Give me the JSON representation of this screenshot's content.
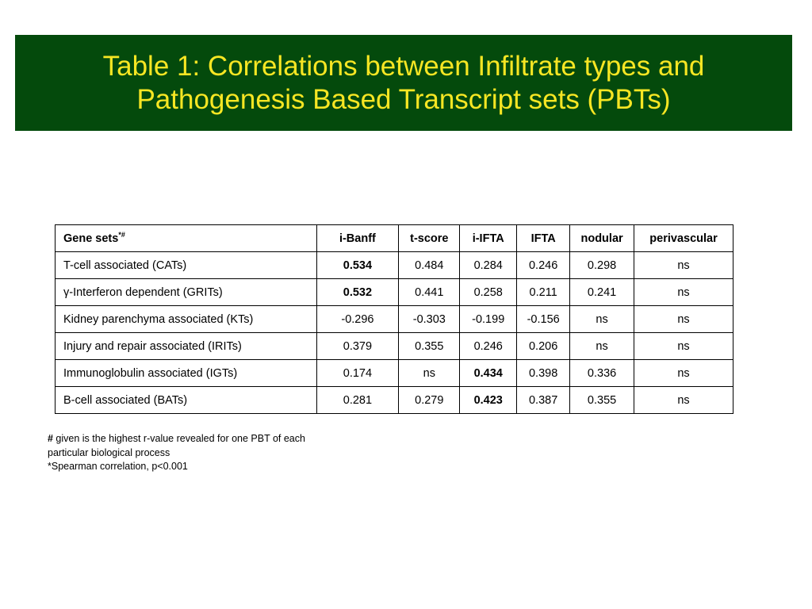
{
  "title": {
    "line1": "Table 1: Correlations between Infiltrate types and",
    "line2": "Pathogenesis Based Transcript sets (PBTs)"
  },
  "table": {
    "header": {
      "gene_sets_label": "Gene sets",
      "gene_sets_marks": "*#",
      "columns": [
        "i-Banff",
        "t-score",
        "i-IFTA",
        "IFTA",
        "nodular",
        "perivascular"
      ]
    },
    "rows": [
      {
        "name": "T-cell associated (CATs)",
        "values": [
          "0.534",
          "0.484",
          "0.284",
          "0.246",
          "0.298",
          "ns"
        ],
        "bold": [
          true,
          false,
          false,
          false,
          false,
          false
        ]
      },
      {
        "name": "γ-Interferon dependent (GRITs)",
        "values": [
          "0.532",
          "0.441",
          "0.258",
          "0.211",
          "0.241",
          "ns"
        ],
        "bold": [
          true,
          false,
          false,
          false,
          false,
          false
        ]
      },
      {
        "name": "Kidney  parenchyma associated (KTs)",
        "values": [
          "-0.296",
          "-0.303",
          "-0.199",
          "-0.156",
          "ns",
          "ns"
        ],
        "bold": [
          false,
          false,
          false,
          false,
          false,
          false
        ]
      },
      {
        "name": "Injury and repair associated (IRITs)",
        "values": [
          "0.379",
          "0.355",
          "0.246",
          "0.206",
          "ns",
          "ns"
        ],
        "bold": [
          false,
          false,
          false,
          false,
          false,
          false
        ]
      },
      {
        "name": "Immunoglobulin associated (IGTs)",
        "values": [
          "0.174",
          "ns",
          "0.434",
          "0.398",
          "0.336",
          "ns"
        ],
        "bold": [
          false,
          false,
          true,
          false,
          false,
          false
        ]
      },
      {
        "name": "B-cell associated (BATs)",
        "values": [
          "0.281",
          "0.279",
          "0.423",
          "0.387",
          "0.355",
          "ns"
        ],
        "bold": [
          false,
          false,
          true,
          false,
          false,
          false
        ]
      }
    ]
  },
  "footnotes": {
    "hash_symbol": "#",
    "hash_line1": " given is the highest r-value revealed for one PBT of each",
    "hash_line2": "particular biological process",
    "spearman": "*Spearman correlation, p<0.001"
  },
  "colors": {
    "banner_background": "#044a0c",
    "title_text": "#f7e623",
    "table_border": "#000000"
  }
}
